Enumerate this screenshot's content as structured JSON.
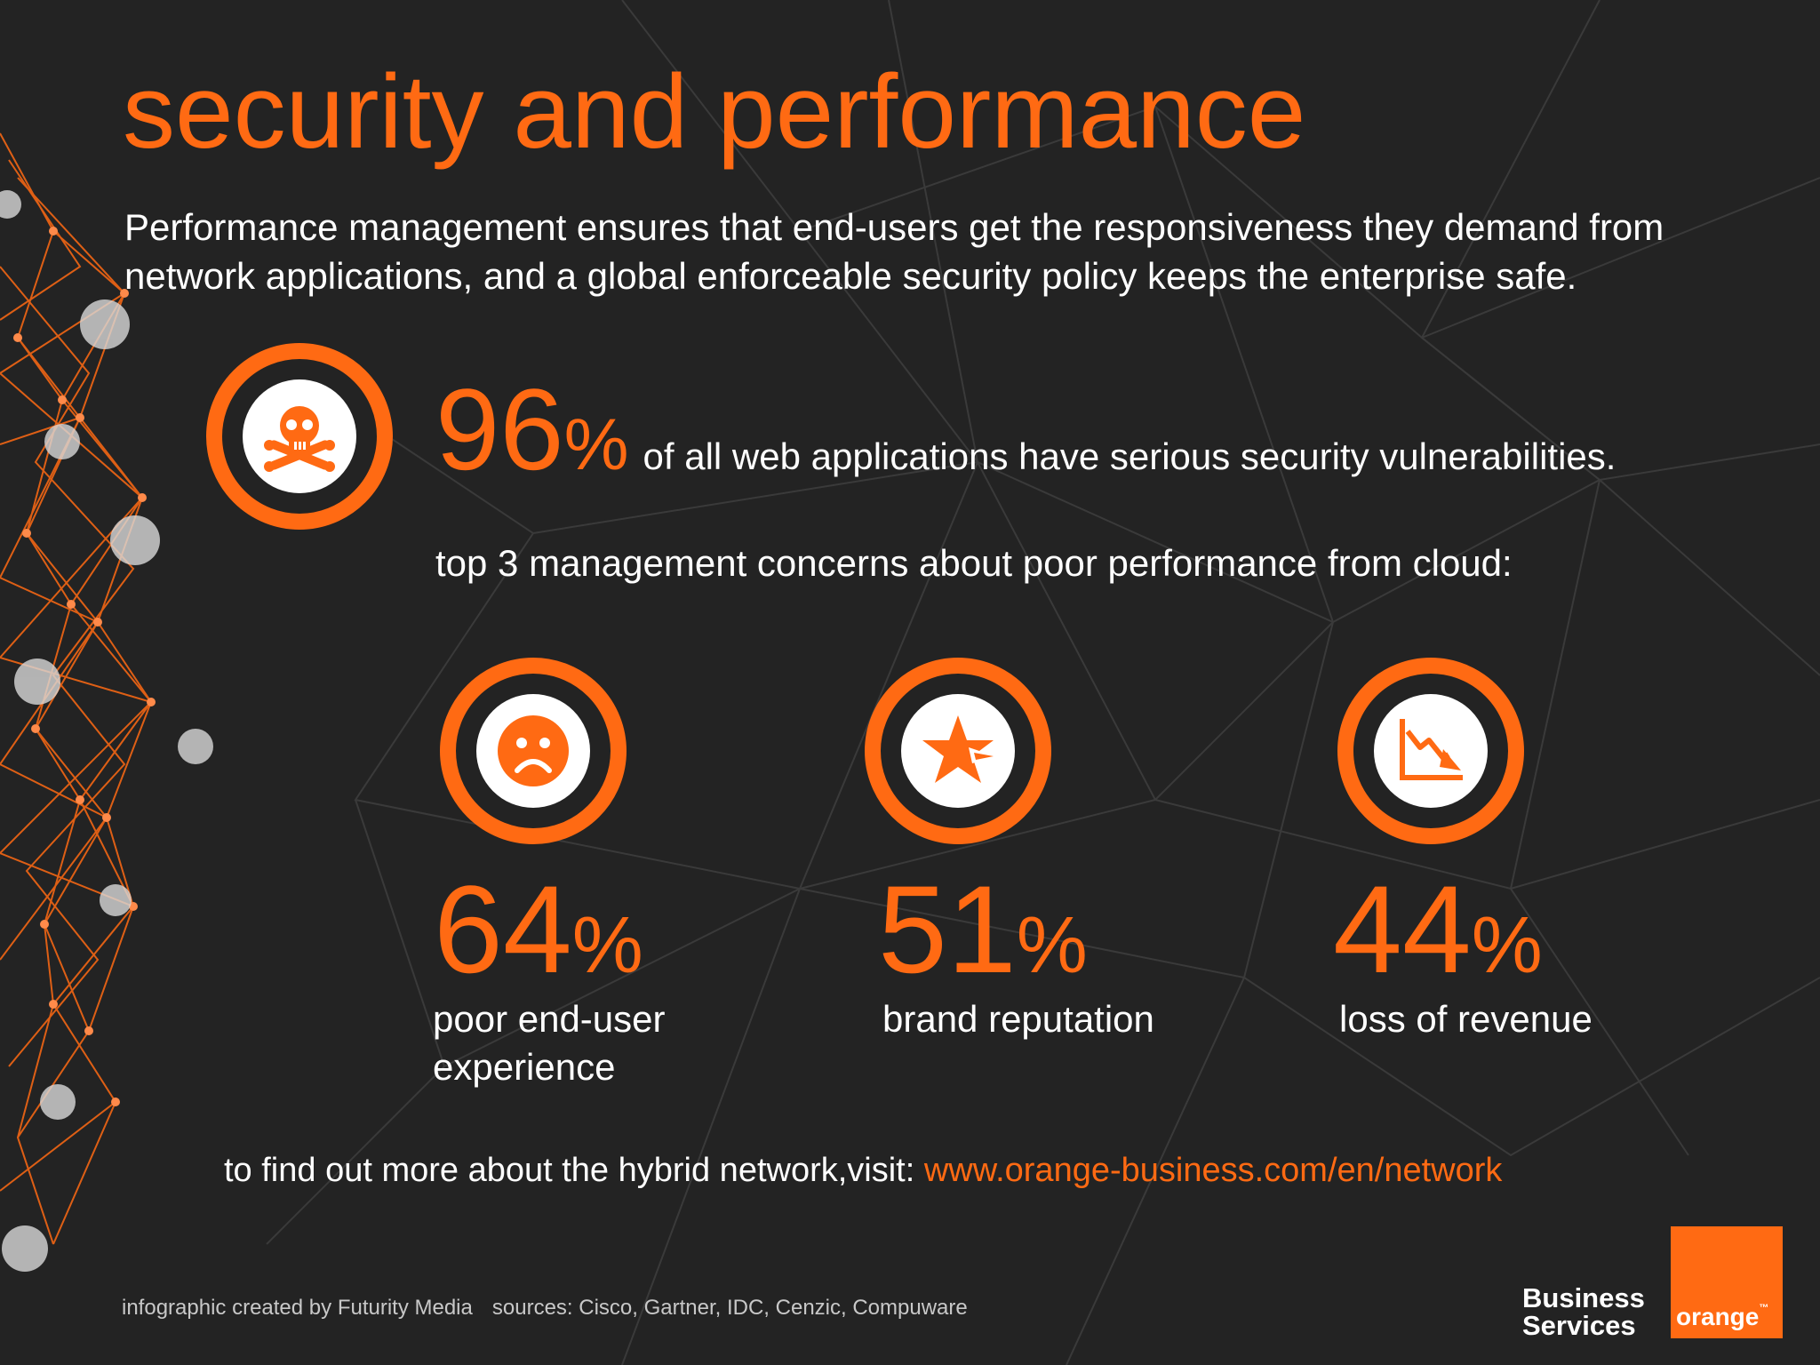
{
  "header": {
    "title": "security and performance",
    "intro": "Performance management ensures that end-users get the responsiveness they demand from network applications, and a global enforceable security policy keeps the enterprise safe."
  },
  "security_stat": {
    "value": "96",
    "percent_sign": "%",
    "text": "of all web applications have serious security vulnerabilities.",
    "icon": "skull-crossbones-icon"
  },
  "concerns": {
    "heading": "top 3 management concerns about poor performance from cloud:",
    "items": [
      {
        "value": "64",
        "percent_sign": "%",
        "label_line1": "poor end-user",
        "label_line2": "experience",
        "icon": "sad-face-icon"
      },
      {
        "value": "51",
        "percent_sign": "%",
        "label_line1": "brand reputation",
        "label_line2": "",
        "icon": "broken-star-icon"
      },
      {
        "value": "44",
        "percent_sign": "%",
        "label_line1": "loss of revenue",
        "label_line2": "",
        "icon": "declining-chart-icon"
      }
    ]
  },
  "cta": {
    "text": "to find out more about the hybrid network,visit: ",
    "link": "www.orange-business.com/en/network"
  },
  "footer": {
    "credit": "infographic created by Futurity Media",
    "sources": "sources: Cisco, Gartner, IDC, Cenzic, Compuware"
  },
  "brand": {
    "line1": "Business",
    "line2": "Services",
    "logo_text": "orange",
    "tm": "™"
  },
  "colors": {
    "accent": "#ff6a13",
    "background": "#232323",
    "text": "#ffffff"
  }
}
